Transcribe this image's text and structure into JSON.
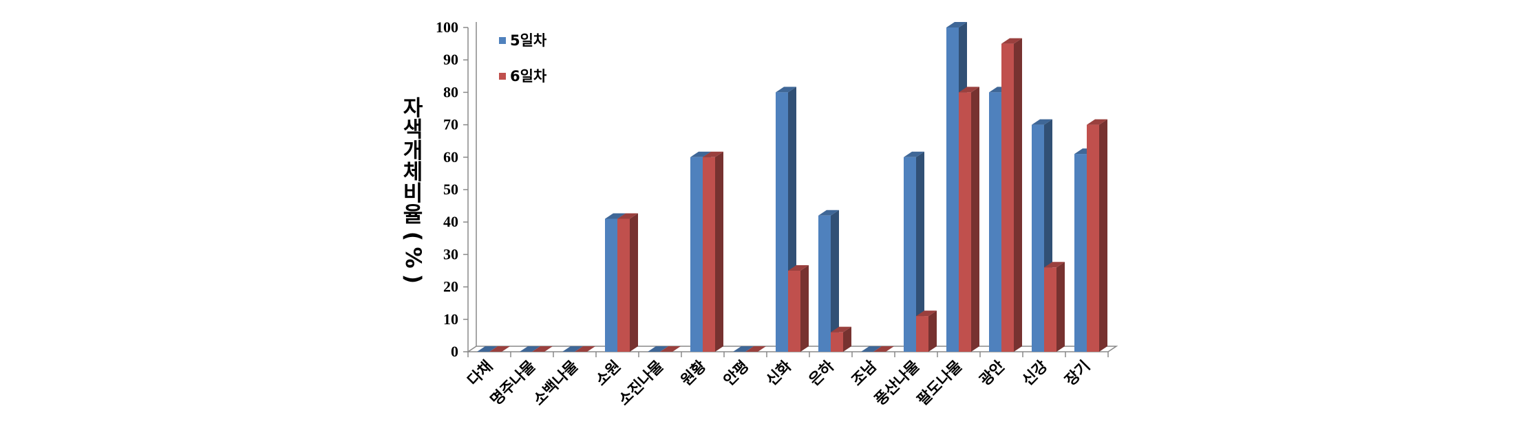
{
  "chart_data": {
    "type": "bar",
    "style": "3d-clustered",
    "categories": [
      "다채",
      "명주나물",
      "소백나물",
      "소원",
      "소진나물",
      "원황",
      "안평",
      "신화",
      "은하",
      "조남",
      "풍산나물",
      "팔도나물",
      "광안",
      "신강",
      "장기"
    ],
    "series": [
      {
        "name": "5일차",
        "color": "#4f81bd",
        "values": [
          0,
          0,
          0,
          41,
          0,
          60,
          0,
          80,
          42,
          0,
          60,
          100,
          80,
          70,
          61
        ]
      },
      {
        "name": "6일차",
        "color": "#c0504d",
        "values": [
          0,
          0,
          0,
          41,
          0,
          60,
          0,
          25,
          6,
          0,
          11,
          80,
          95,
          26,
          70
        ]
      }
    ],
    "title": "",
    "xlabel": "",
    "ylabel": "자색개체비율(%)",
    "ylim": [
      0,
      100
    ],
    "yticks": [
      "0",
      "10",
      "20",
      "30",
      "40",
      "50",
      "60",
      "70",
      "80",
      "90",
      "100"
    ],
    "grid": false,
    "legend": "top-left"
  }
}
